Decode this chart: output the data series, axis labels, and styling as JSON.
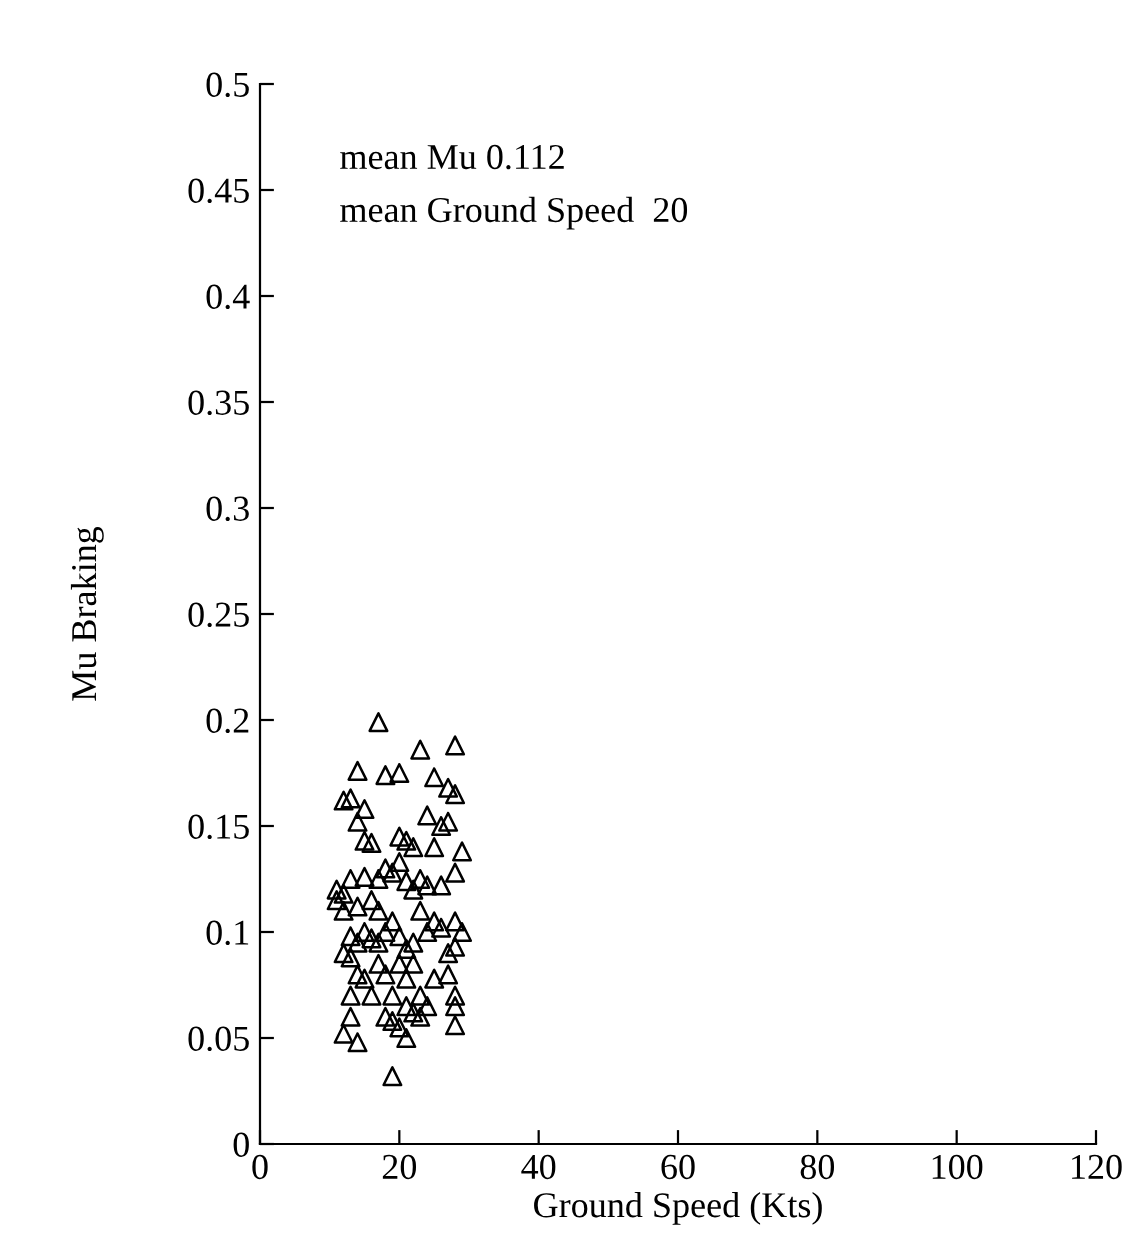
{
  "chart_data": {
    "type": "scatter",
    "xlabel": "Ground Speed (Kts)",
    "ylabel": "Mu Braking",
    "xlim": [
      0,
      120
    ],
    "xticks": [
      0,
      20,
      40,
      60,
      80,
      100,
      120
    ],
    "ylim": [
      0,
      0.5
    ],
    "yticks": [
      0,
      0.05,
      0.1,
      0.15,
      0.2,
      0.25,
      0.3,
      0.35,
      0.4,
      0.45,
      0.5
    ],
    "grid": false,
    "marker": "triangle",
    "legend": false,
    "annotations": [
      "mean Mu 0.112",
      "mean Ground Speed  20"
    ],
    "series": [
      {
        "color": "#000000",
        "x": [
          17,
          23,
          28,
          18,
          20,
          25,
          14,
          12,
          13,
          15,
          27,
          28,
          14,
          24,
          26,
          27,
          29,
          15,
          16,
          20,
          21,
          22,
          25,
          11,
          12,
          13,
          15,
          17,
          18,
          19,
          20,
          21,
          22,
          23,
          24,
          26,
          28,
          12,
          14,
          16,
          17,
          19,
          23,
          13,
          14,
          15,
          16,
          18,
          20,
          21,
          22,
          25,
          26,
          28,
          29,
          12,
          13,
          17,
          20,
          22,
          27,
          28,
          14,
          15,
          18,
          21,
          25,
          27,
          13,
          16,
          19,
          21,
          23,
          24,
          28,
          13,
          18,
          19,
          22,
          28,
          12,
          14,
          20,
          21,
          28,
          19,
          23,
          17,
          24,
          11
        ],
        "values": [
          0.199,
          0.186,
          0.188,
          0.174,
          0.175,
          0.173,
          0.176,
          0.162,
          0.163,
          0.158,
          0.168,
          0.165,
          0.152,
          0.155,
          0.15,
          0.152,
          0.138,
          0.143,
          0.142,
          0.145,
          0.143,
          0.14,
          0.14,
          0.12,
          0.118,
          0.125,
          0.126,
          0.125,
          0.13,
          0.128,
          0.133,
          0.124,
          0.12,
          0.125,
          0.122,
          0.122,
          0.128,
          0.11,
          0.112,
          0.115,
          0.11,
          0.105,
          0.11,
          0.098,
          0.095,
          0.1,
          0.097,
          0.1,
          0.098,
          0.092,
          0.095,
          0.105,
          0.102,
          0.105,
          0.1,
          0.09,
          0.088,
          0.085,
          0.085,
          0.085,
          0.09,
          0.093,
          0.08,
          0.078,
          0.08,
          0.078,
          0.078,
          0.08,
          0.07,
          0.07,
          0.07,
          0.065,
          0.07,
          0.065,
          0.07,
          0.06,
          0.06,
          0.058,
          0.062,
          0.065,
          0.052,
          0.048,
          0.055,
          0.05,
          0.056,
          0.032,
          0.06,
          0.095,
          0.1,
          0.115
        ]
      }
    ]
  }
}
